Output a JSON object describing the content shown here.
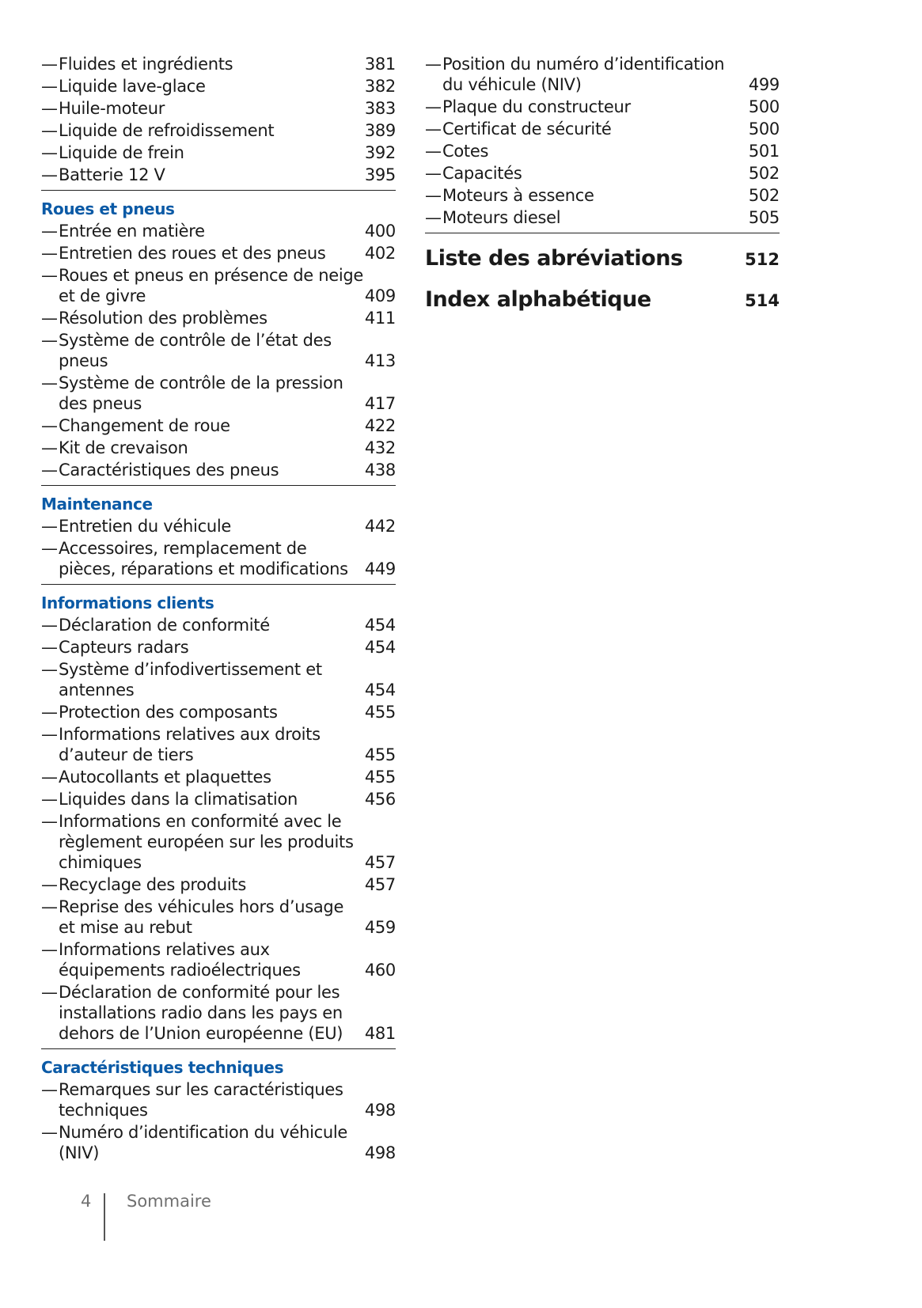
{
  "left_column": {
    "intro_entries": [
      {
        "lines": [
          "Fluides et ingrédients"
        ],
        "page": "381"
      },
      {
        "lines": [
          "Liquide lave-glace"
        ],
        "page": "382"
      },
      {
        "lines": [
          "Huile-moteur"
        ],
        "page": "383"
      },
      {
        "lines": [
          "Liquide de refroidissement"
        ],
        "page": "389"
      },
      {
        "lines": [
          "Liquide de frein"
        ],
        "page": "392"
      },
      {
        "lines": [
          "Batterie 12 V"
        ],
        "page": "395"
      }
    ],
    "sections": [
      {
        "title": "Roues et pneus",
        "entries": [
          {
            "lines": [
              "Entrée en matière"
            ],
            "page": "400"
          },
          {
            "lines": [
              "Entretien des roues et des pneus"
            ],
            "page": "402"
          },
          {
            "lines": [
              "Roues et pneus en présence de neige",
              "et de givre"
            ],
            "page": "409"
          },
          {
            "lines": [
              "Résolution des problèmes"
            ],
            "page": "411"
          },
          {
            "lines": [
              "Système de contrôle de l’état des",
              "pneus"
            ],
            "page": "413"
          },
          {
            "lines": [
              "Système de contrôle de la pression",
              "des pneus"
            ],
            "page": "417"
          },
          {
            "lines": [
              "Changement de roue"
            ],
            "page": "422"
          },
          {
            "lines": [
              "Kit de crevaison"
            ],
            "page": "432"
          },
          {
            "lines": [
              "Caractéristiques des pneus"
            ],
            "page": "438"
          }
        ]
      },
      {
        "title": "Maintenance",
        "entries": [
          {
            "lines": [
              "Entretien du véhicule"
            ],
            "page": "442"
          },
          {
            "lines": [
              "Accessoires, remplacement de",
              "pièces, réparations et modifications"
            ],
            "page": "449"
          }
        ]
      },
      {
        "title": "Informations clients",
        "entries": [
          {
            "lines": [
              "Déclaration de conformité"
            ],
            "page": "454"
          },
          {
            "lines": [
              "Capteurs radars"
            ],
            "page": "454"
          },
          {
            "lines": [
              "Système d’infodivertissement et",
              "antennes"
            ],
            "page": "454"
          },
          {
            "lines": [
              "Protection des composants"
            ],
            "page": "455"
          },
          {
            "lines": [
              "Informations relatives aux droits",
              "d’auteur de tiers"
            ],
            "page": "455"
          },
          {
            "lines": [
              "Autocollants et plaquettes"
            ],
            "page": "455"
          },
          {
            "lines": [
              "Liquides dans la climatisation"
            ],
            "page": "456"
          },
          {
            "lines": [
              "Informations en conformité avec le",
              "règlement européen sur les produits",
              "chimiques"
            ],
            "page": "457"
          },
          {
            "lines": [
              "Recyclage des produits"
            ],
            "page": "457"
          },
          {
            "lines": [
              "Reprise des véhicules hors d’usage",
              "et mise au rebut"
            ],
            "page": "459"
          },
          {
            "lines": [
              "Informations relatives aux",
              "équipements radioélectriques"
            ],
            "page": "460"
          },
          {
            "lines": [
              "Déclaration de conformité pour les",
              "installations radio dans les pays en",
              "dehors de l’Union européenne (EU)"
            ],
            "page": "481"
          }
        ]
      },
      {
        "title": "Caractéristiques techniques",
        "no_rule": true,
        "entries": [
          {
            "lines": [
              "Remarques sur les caractéristiques",
              "techniques"
            ],
            "page": "498"
          },
          {
            "lines": [
              "Numéro d’identification du véhicule",
              "(NIV)"
            ],
            "page": "498"
          }
        ]
      }
    ]
  },
  "right_column": {
    "entries": [
      {
        "lines": [
          "Position du numéro d’identification",
          "du véhicule (NIV)"
        ],
        "page": "499"
      },
      {
        "lines": [
          "Plaque du constructeur"
        ],
        "page": "500"
      },
      {
        "lines": [
          "Certificat de sécurité"
        ],
        "page": "500"
      },
      {
        "lines": [
          "Cotes"
        ],
        "page": "501"
      },
      {
        "lines": [
          "Capacités"
        ],
        "page": "502"
      },
      {
        "lines": [
          "Moteurs à essence"
        ],
        "page": "502"
      },
      {
        "lines": [
          "Moteurs diesel"
        ],
        "page": "505"
      }
    ],
    "chapters": [
      {
        "title": "Liste des abréviations",
        "page": "512"
      },
      {
        "title": "Index alphabétique",
        "page": "514"
      }
    ]
  },
  "dash_glyph": "—",
  "footer": {
    "page_number": "4",
    "title": "Sommaire"
  },
  "colors": {
    "section_heading": "#0b5aa6"
  }
}
